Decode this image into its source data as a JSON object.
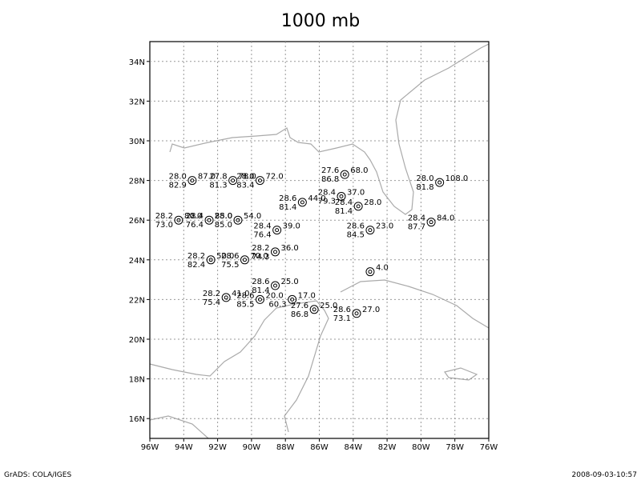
{
  "header": {
    "title": "1000 mb"
  },
  "footer": {
    "left": "GrADS: COLA/IGES",
    "right": "2008-09-03-10:57"
  },
  "map": {
    "lon_range": [
      -96,
      -76
    ],
    "lat_range": [
      15,
      35
    ],
    "lon_ticks": [
      {
        "value": -96,
        "label": "96W"
      },
      {
        "value": -94,
        "label": "94W"
      },
      {
        "value": -92,
        "label": "92W"
      },
      {
        "value": -90,
        "label": "90W"
      },
      {
        "value": -88,
        "label": "88W"
      },
      {
        "value": -86,
        "label": "86W"
      },
      {
        "value": -84,
        "label": "84W"
      },
      {
        "value": -82,
        "label": "82W"
      },
      {
        "value": -80,
        "label": "80W"
      },
      {
        "value": -78,
        "label": "78W"
      },
      {
        "value": -76,
        "label": "76W"
      }
    ],
    "lat_ticks": [
      {
        "value": 16,
        "label": "16N"
      },
      {
        "value": 18,
        "label": "18N"
      },
      {
        "value": 20,
        "label": "20N"
      },
      {
        "value": 22,
        "label": "22N"
      },
      {
        "value": 24,
        "label": "24N"
      },
      {
        "value": 26,
        "label": "26N"
      },
      {
        "value": 28,
        "label": "28N"
      },
      {
        "value": 30,
        "label": "30N"
      },
      {
        "value": 32,
        "label": "32N"
      },
      {
        "value": 34,
        "label": "34N"
      }
    ]
  },
  "stations": [
    {
      "lon": -93.5,
      "lat": 28.0,
      "temp": "28.0",
      "rh": "82.9",
      "right": "87.0"
    },
    {
      "lon": -91.1,
      "lat": 28.0,
      "temp": "27.8",
      "rh": "81.3",
      "right": "78.0"
    },
    {
      "lon": -89.5,
      "lat": 28.0,
      "temp": "28.0",
      "rh": "83.4",
      "right": "72.0"
    },
    {
      "lon": -94.3,
      "lat": 26.0,
      "temp": "28.2",
      "rh": "73.0",
      "right": "80.0"
    },
    {
      "lon": -92.5,
      "lat": 26.0,
      "temp": "28.4",
      "rh": "76.4",
      "right": "85.0"
    },
    {
      "lon": -90.8,
      "lat": 26.0,
      "temp": "28.0",
      "rh": "85.0",
      "right": "54.0"
    },
    {
      "lon": -84.5,
      "lat": 28.3,
      "temp": "27.6",
      "rh": "86.8",
      "right": "68.0"
    },
    {
      "lon": -87.0,
      "lat": 26.9,
      "temp": "28.6",
      "rh": "81.4",
      "right": "44.0"
    },
    {
      "lon": -84.7,
      "lat": 27.2,
      "temp": "28.4",
      "rh": "79.3",
      "right": "37.0"
    },
    {
      "lon": -83.7,
      "lat": 26.7,
      "temp": "28.4",
      "rh": "81.4",
      "right": "28.0"
    },
    {
      "lon": -88.5,
      "lat": 25.5,
      "temp": "28.4",
      "rh": "76.4",
      "right": "39.0"
    },
    {
      "lon": -83.0,
      "lat": 25.5,
      "temp": "28.6",
      "rh": "84.5",
      "right": "23.0"
    },
    {
      "lon": -78.9,
      "lat": 27.9,
      "temp": "28.0",
      "rh": "81.8",
      "right": "108.0"
    },
    {
      "lon": -79.4,
      "lat": 25.9,
      "temp": "28.4",
      "rh": "87.7",
      "right": "84.0"
    },
    {
      "lon": -92.4,
      "lat": 24.0,
      "temp": "28.2",
      "rh": "82.4",
      "right": "50.0"
    },
    {
      "lon": -90.4,
      "lat": 24.0,
      "temp": "28.6",
      "rh": "75.5",
      "right": "70.0"
    },
    {
      "lon": -88.6,
      "lat": 24.4,
      "temp": "28.2",
      "rh": "74.3",
      "right": "36.0"
    },
    {
      "lon": -83.0,
      "lat": 23.4,
      "right": "4.0"
    },
    {
      "lon": -88.6,
      "lat": 22.7,
      "temp": "28.6",
      "rh": "81.4",
      "right": "25.0"
    },
    {
      "lon": -91.5,
      "lat": 22.1,
      "temp": "28.2",
      "rh": "75.4",
      "right": "41.0"
    },
    {
      "lon": -89.5,
      "lat": 22.0,
      "temp": "28.6",
      "rh": "85.5",
      "right": "20.0"
    },
    {
      "lon": -87.6,
      "lat": 22.0,
      "rh": "60.3",
      "right": "17.0"
    },
    {
      "lon": -86.3,
      "lat": 21.5,
      "temp": "27.6",
      "rh": "86.8",
      "right": "25.0"
    },
    {
      "lon": -83.8,
      "lat": 21.3,
      "temp": "28.6",
      "rh": "73.1",
      "right": "27.0"
    }
  ]
}
